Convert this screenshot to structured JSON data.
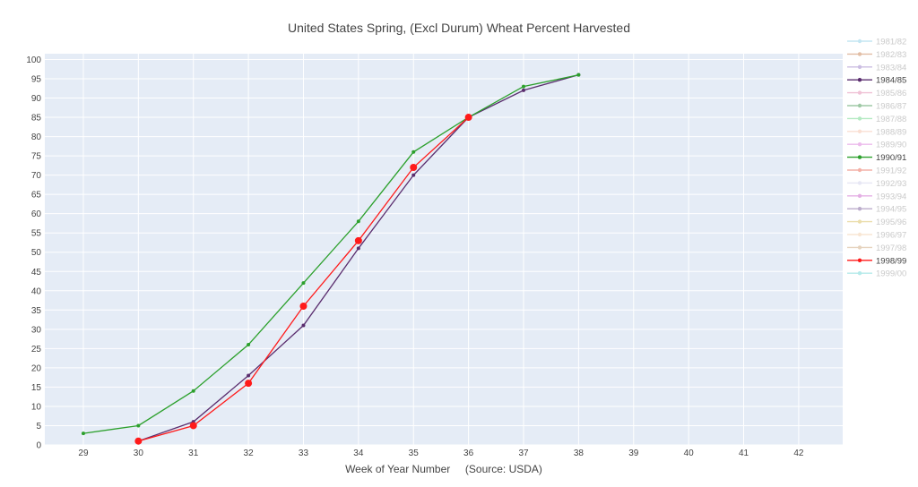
{
  "chart_data": {
    "type": "line",
    "title": "United States Spring, (Excl Durum) Wheat Percent Harvested",
    "xlabel": "Week of Year Number     (Source: USDA)",
    "ylabel": "",
    "xlim": [
      28.3,
      42.8
    ],
    "ylim": [
      0,
      101.5
    ],
    "x_ticks": [
      29,
      30,
      31,
      32,
      33,
      34,
      35,
      36,
      37,
      38,
      39,
      40,
      41,
      42
    ],
    "y_ticks": [
      0,
      5,
      10,
      15,
      20,
      25,
      30,
      35,
      40,
      45,
      50,
      55,
      60,
      65,
      70,
      75,
      80,
      85,
      90,
      95,
      100
    ],
    "grid": true,
    "background_color": "#e5ecf6",
    "grid_color": "#ffffff",
    "legend_position": "right",
    "series": [
      {
        "name": "1981/82",
        "color": "#7ec8e3",
        "dimmed": true,
        "marker_size": 2,
        "x": [],
        "y": []
      },
      {
        "name": "1982/83",
        "color": "#c0703a",
        "dimmed": true,
        "marker_size": 2,
        "x": [],
        "y": []
      },
      {
        "name": "1983/84",
        "color": "#8e6fbf",
        "dimmed": true,
        "marker_size": 2,
        "x": [],
        "y": []
      },
      {
        "name": "1984/85",
        "color": "#5a2d6e",
        "dimmed": false,
        "marker_size": 2,
        "x": [
          30,
          31,
          32,
          33,
          34,
          35,
          36,
          37,
          38
        ],
        "y": [
          1,
          6,
          18,
          31,
          51,
          70,
          85,
          92,
          96
        ]
      },
      {
        "name": "1985/86",
        "color": "#e07aa6",
        "dimmed": true,
        "marker_size": 2,
        "x": [],
        "y": []
      },
      {
        "name": "1986/87",
        "color": "#2d8a3a",
        "dimmed": true,
        "marker_size": 2,
        "x": [],
        "y": []
      },
      {
        "name": "1987/88",
        "color": "#5ad17a",
        "dimmed": true,
        "marker_size": 2,
        "x": [],
        "y": []
      },
      {
        "name": "1988/89",
        "color": "#f4b9a0",
        "dimmed": true,
        "marker_size": 2,
        "x": [],
        "y": []
      },
      {
        "name": "1989/90",
        "color": "#d66ad6",
        "dimmed": true,
        "marker_size": 2,
        "x": [],
        "y": []
      },
      {
        "name": "1990/91",
        "color": "#2ca02c",
        "dimmed": false,
        "marker_size": 2,
        "x": [
          29,
          30,
          31,
          32,
          33,
          34,
          35,
          36,
          37,
          38
        ],
        "y": [
          3,
          5,
          14,
          26,
          42,
          58,
          76,
          85,
          93,
          96
        ]
      },
      {
        "name": "1991/92",
        "color": "#e8553e",
        "dimmed": true,
        "marker_size": 2,
        "x": [],
        "y": []
      },
      {
        "name": "1992/93",
        "color": "#c8c8e8",
        "dimmed": true,
        "marker_size": 2,
        "x": [],
        "y": []
      },
      {
        "name": "1993/94",
        "color": "#c44fc4",
        "dimmed": true,
        "marker_size": 2,
        "x": [],
        "y": []
      },
      {
        "name": "1994/95",
        "color": "#6a4a8e",
        "dimmed": true,
        "marker_size": 2,
        "x": [],
        "y": []
      },
      {
        "name": "1995/96",
        "color": "#d4b84a",
        "dimmed": true,
        "marker_size": 2,
        "x": [],
        "y": []
      },
      {
        "name": "1996/97",
        "color": "#f0c8a0",
        "dimmed": true,
        "marker_size": 2,
        "x": [],
        "y": []
      },
      {
        "name": "1997/98",
        "color": "#c8a070",
        "dimmed": true,
        "marker_size": 2,
        "x": [],
        "y": []
      },
      {
        "name": "1998/99",
        "color": "#ff1a1a",
        "dimmed": false,
        "marker_size": 4,
        "x": [
          30,
          31,
          32,
          33,
          34,
          35,
          36
        ],
        "y": [
          1,
          5,
          16,
          36,
          53,
          72,
          85
        ]
      },
      {
        "name": "1999/00",
        "color": "#5ad1d1",
        "dimmed": true,
        "marker_size": 2,
        "x": [],
        "y": []
      }
    ]
  }
}
